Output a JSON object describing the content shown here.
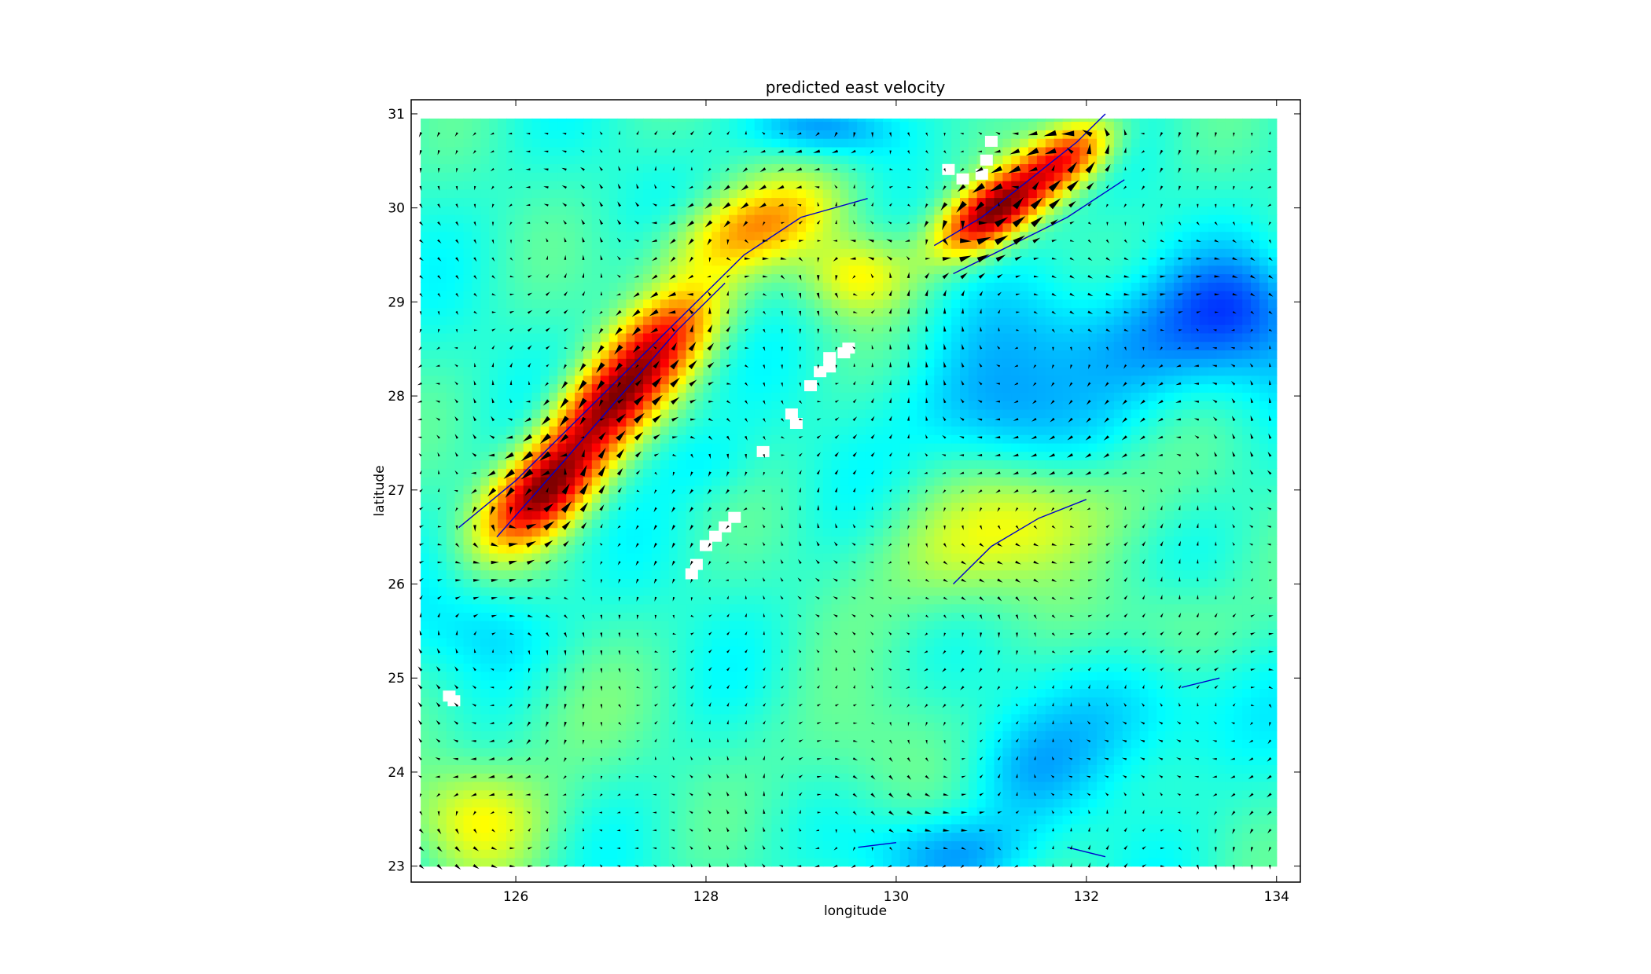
{
  "chart_data": {
    "type": "heatmap",
    "title": "predicted east velocity",
    "xlabel": "longitude",
    "ylabel": "latitude",
    "xlim": [
      124.9,
      134.25
    ],
    "ylim": [
      22.83,
      31.15
    ],
    "data_extent": {
      "lon": [
        125.0,
        134.0
      ],
      "lat": [
        23.0,
        30.95
      ]
    },
    "xticks": [
      126,
      128,
      130,
      132,
      134
    ],
    "yticks": [
      23,
      24,
      25,
      26,
      27,
      28,
      29,
      30,
      31
    ],
    "grid": false,
    "legend": "none",
    "colormap": "jet",
    "arrow_color": "#000000",
    "contour_color": "#0000cc",
    "features": [
      {
        "lon": 126.3,
        "lat": 27.0,
        "sigma": [
          0.55,
          0.28
        ],
        "angle": 42,
        "amp": 1.0
      },
      {
        "lon": 127.0,
        "lat": 27.95,
        "sigma": [
          0.55,
          0.28
        ],
        "angle": 42,
        "amp": 0.85
      },
      {
        "lon": 127.6,
        "lat": 28.7,
        "sigma": [
          0.5,
          0.3
        ],
        "angle": 40,
        "amp": 0.6
      },
      {
        "lon": 128.5,
        "lat": 29.8,
        "sigma": [
          0.7,
          0.3
        ],
        "angle": 20,
        "amp": 0.5
      },
      {
        "lon": 129.6,
        "lat": 29.3,
        "sigma": [
          0.4,
          0.3
        ],
        "angle": 0,
        "amp": 0.35
      },
      {
        "lon": 131.0,
        "lat": 29.95,
        "sigma": [
          0.45,
          0.22
        ],
        "angle": 35,
        "amp": 1.0
      },
      {
        "lon": 131.8,
        "lat": 30.55,
        "sigma": [
          0.4,
          0.22
        ],
        "angle": 35,
        "amp": 0.75
      },
      {
        "lon": 125.6,
        "lat": 23.5,
        "sigma": [
          0.5,
          0.4
        ],
        "angle": 0,
        "amp": 0.32
      },
      {
        "lon": 131.5,
        "lat": 26.7,
        "sigma": [
          0.8,
          0.4
        ],
        "angle": 15,
        "amp": 0.28
      },
      {
        "lon": 130.6,
        "lat": 26.2,
        "sigma": [
          0.6,
          0.5
        ],
        "angle": 0,
        "amp": 0.18
      },
      {
        "lon": 133.0,
        "lat": 25.6,
        "sigma": [
          0.5,
          0.4
        ],
        "angle": 0,
        "amp": 0.15
      },
      {
        "lon": 129.5,
        "lat": 24.2,
        "sigma": [
          0.6,
          0.5
        ],
        "angle": 0,
        "amp": 0.12
      },
      {
        "lon": 126.4,
        "lat": 24.5,
        "sigma": [
          0.6,
          0.6
        ],
        "angle": 0,
        "amp": 0.1
      },
      {
        "lon": 132.7,
        "lat": 28.6,
        "sigma": [
          1.1,
          0.5
        ],
        "angle": 0,
        "amp": -0.28
      },
      {
        "lon": 133.6,
        "lat": 29.0,
        "sigma": [
          0.5,
          0.4
        ],
        "angle": 0,
        "amp": -0.22
      },
      {
        "lon": 131.0,
        "lat": 27.8,
        "sigma": [
          0.6,
          0.45
        ],
        "angle": 0,
        "amp": -0.22
      },
      {
        "lon": 129.2,
        "lat": 30.85,
        "sigma": [
          0.5,
          0.2
        ],
        "angle": 0,
        "amp": -0.25
      },
      {
        "lon": 130.6,
        "lat": 23.15,
        "sigma": [
          0.6,
          0.3
        ],
        "angle": 0,
        "amp": -0.25
      },
      {
        "lon": 132.6,
        "lat": 24.6,
        "sigma": [
          0.7,
          0.5
        ],
        "angle": 0,
        "amp": -0.18
      },
      {
        "lon": 125.8,
        "lat": 25.5,
        "sigma": [
          0.5,
          0.4
        ],
        "angle": 0,
        "amp": -0.15
      },
      {
        "lon": 128.0,
        "lat": 27.3,
        "sigma": [
          0.4,
          0.3
        ],
        "angle": 0,
        "amp": -0.1
      },
      {
        "lon": 131.3,
        "lat": 24.0,
        "sigma": [
          0.5,
          0.4
        ],
        "angle": 0,
        "amp": -0.15
      }
    ],
    "land_patches": [
      [
        [
          129.3,
          28.4
        ],
        [
          129.45,
          28.45
        ],
        [
          129.5,
          28.5
        ],
        [
          129.2,
          28.25
        ],
        [
          129.1,
          28.1
        ],
        [
          129.3,
          28.3
        ]
      ],
      [
        [
          128.3,
          26.7
        ],
        [
          128.2,
          26.6
        ],
        [
          128.0,
          26.4
        ],
        [
          127.9,
          26.2
        ],
        [
          127.85,
          26.1
        ],
        [
          128.1,
          26.5
        ]
      ],
      [
        [
          128.9,
          27.8
        ],
        [
          128.95,
          27.7
        ]
      ],
      [
        [
          130.55,
          30.4
        ],
        [
          130.7,
          30.3
        ],
        [
          130.95,
          30.5
        ],
        [
          131.0,
          30.7
        ],
        [
          130.9,
          30.35
        ]
      ],
      [
        [
          125.3,
          24.8
        ],
        [
          125.35,
          24.75
        ]
      ],
      [
        [
          128.6,
          27.4
        ]
      ]
    ]
  }
}
